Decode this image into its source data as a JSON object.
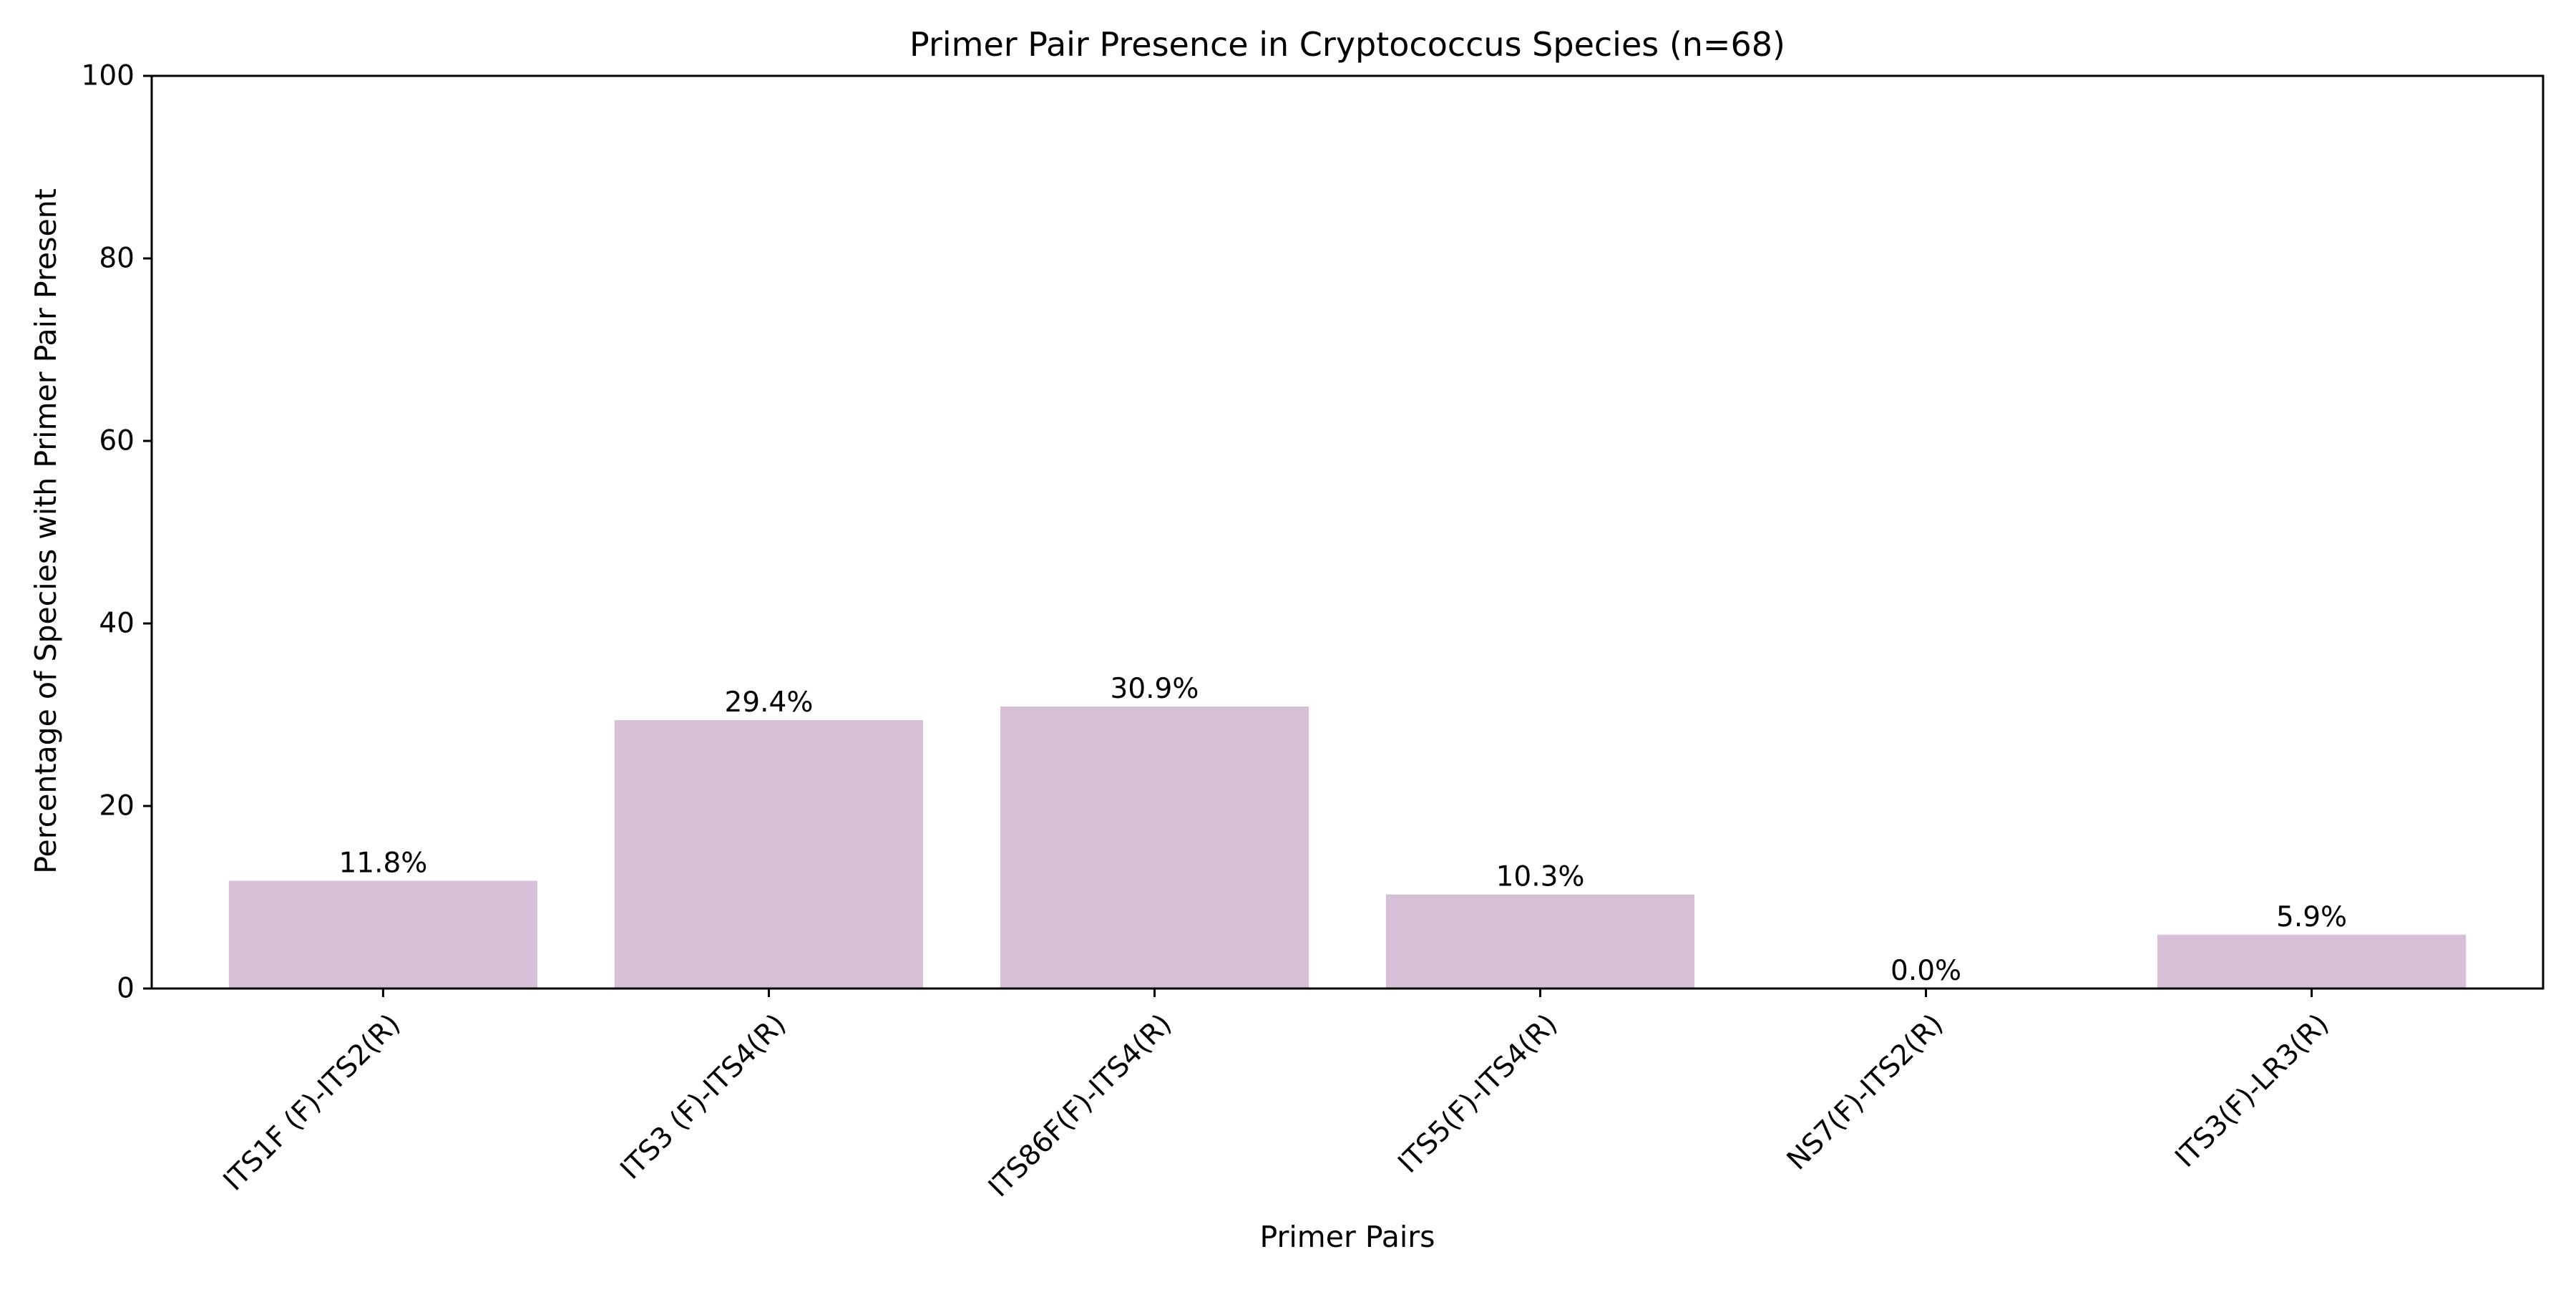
{
  "chart_data": {
    "type": "bar",
    "title": "Primer Pair Presence in Cryptococcus Species (n=68)",
    "xlabel": "Primer Pairs",
    "ylabel": "Percentage of Species with Primer Pair Present",
    "categories": [
      "ITS1F (F)-ITS2(R)",
      "ITS3 (F)-ITS4(R)",
      "ITS86F(F)-ITS4(R)",
      "ITS5(F)-ITS4(R)",
      "NS7(F)-ITS2(R)",
      "ITS3(F)-LR3(R)"
    ],
    "values": [
      11.8,
      29.4,
      30.9,
      10.3,
      0.0,
      5.9
    ],
    "value_labels": [
      "11.8%",
      "29.4%",
      "30.9%",
      "10.3%",
      "0.0%",
      "5.9%"
    ],
    "ylim": [
      0,
      100
    ],
    "yticks": [
      0,
      20,
      40,
      60,
      80,
      100
    ],
    "bar_color": "#d8bfd8",
    "grid": false,
    "legend": "none"
  }
}
